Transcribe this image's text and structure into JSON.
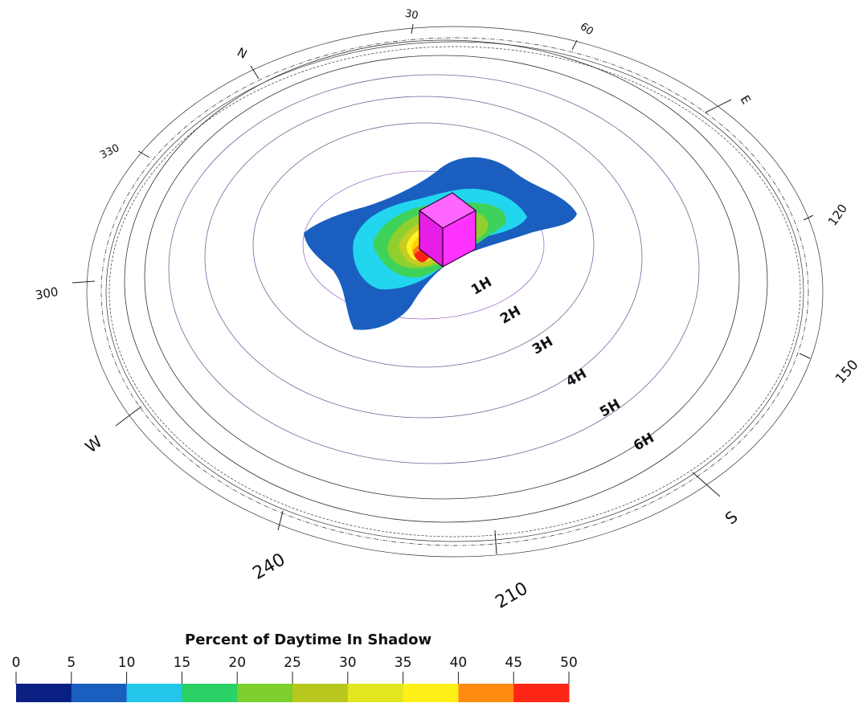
{
  "compass": {
    "cardinals": {
      "north": "N",
      "east": "E",
      "south": "S",
      "west": "W"
    },
    "bearings": [
      "30",
      "60",
      "120",
      "150",
      "210",
      "240",
      "300",
      "330"
    ]
  },
  "height_rings": [
    "1H",
    "2H",
    "3H",
    "4H",
    "5H",
    "6H"
  ],
  "building": {
    "label": "",
    "color": "#ff33ff"
  },
  "shadow_contours": {
    "colors": [
      "#1a5fc0",
      "#22d6ef",
      "#3fd25a",
      "#8fcf2e",
      "#c6cc22",
      "#fff21e",
      "#ffd200",
      "#ff7a18",
      "#ff2016"
    ]
  },
  "legend": {
    "title": "Percent of Daytime In Shadow",
    "ticks": [
      "0",
      "5",
      "10",
      "15",
      "20",
      "25",
      "30",
      "35",
      "40",
      "45",
      "50"
    ],
    "colors": [
      "#0a1f82",
      "#1a5fc0",
      "#22c7ea",
      "#29d166",
      "#7ccf2c",
      "#b7c71e",
      "#e1e621",
      "#fff01a",
      "#ff8a12",
      "#ff2616"
    ]
  }
}
